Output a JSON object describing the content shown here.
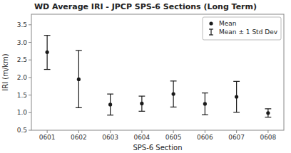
{
  "chart_data": {
    "type": "errorbar",
    "title": "WD Average IRI - JPCP SPS-6 Sections (Long Term)",
    "x_label": "SPS-6 Section",
    "y_label": "IRI (m/km)",
    "categories": [
      "0601",
      "0602",
      "0603",
      "0604",
      "0605",
      "0606",
      "0607",
      "0608"
    ],
    "series": [
      {
        "name": "Mean",
        "type": "scatter",
        "color": "#1a1a1a",
        "values": [
          2.72,
          1.95,
          1.23,
          1.26,
          1.53,
          1.25,
          1.45,
          0.99
        ]
      },
      {
        "name": "Mean ± 1 Std Dev",
        "type": "errorbar",
        "color": "#1a1a1a",
        "high": [
          3.2,
          2.77,
          1.53,
          1.47,
          1.9,
          1.56,
          1.89,
          1.11
        ],
        "low": [
          2.23,
          1.14,
          0.93,
          1.04,
          1.16,
          0.94,
          1.01,
          0.87
        ]
      }
    ],
    "ylim": [
      0.5,
      3.8
    ],
    "yticks": [
      0.5,
      {
        "value": 1.0,
        "label": "1.0"
      },
      1.5,
      {
        "value": 2.0,
        "label": "2.0"
      },
      2.5,
      {
        "value": 3.0,
        "label": "3.0"
      },
      3.5
    ],
    "grid": false,
    "legend": "upper-right"
  }
}
